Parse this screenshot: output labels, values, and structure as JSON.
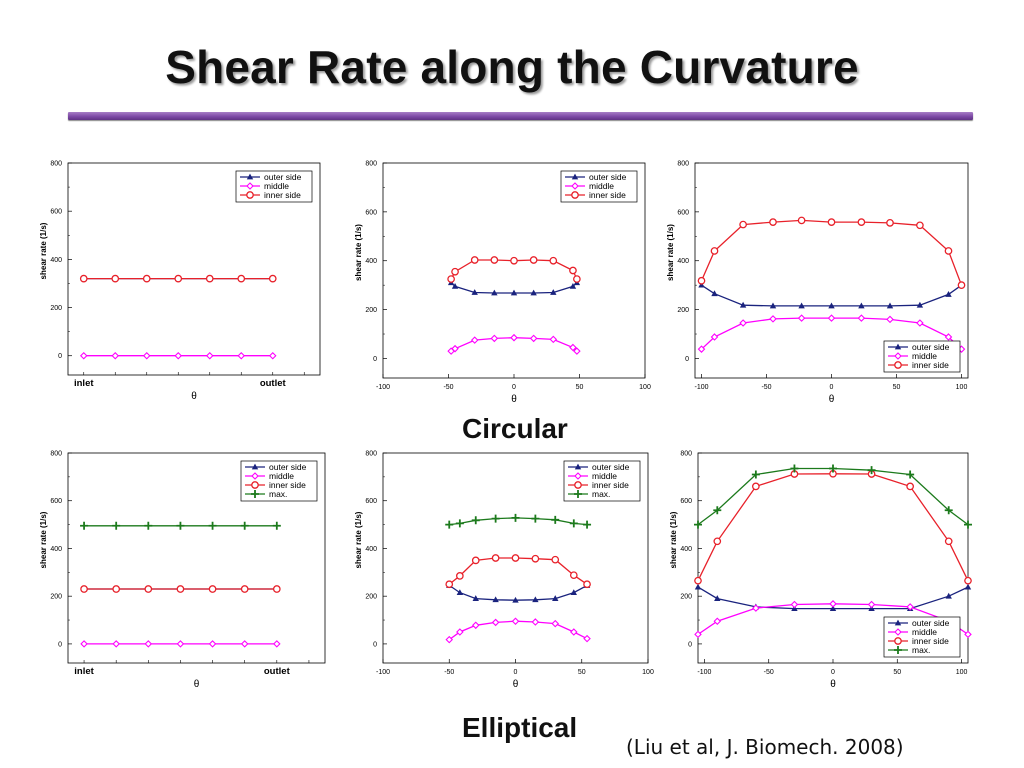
{
  "title": "Shear Rate along the Curvature",
  "section_labels": {
    "circular": "Circular",
    "elliptical": "Elliptical"
  },
  "citation": "(Liu et al, J. Biomech. 2008)",
  "colors": {
    "outer side": "#1a237e",
    "middle": "#ff00ff",
    "inner side": "#e8212a",
    "max.": "#1c7a1c"
  },
  "chart_data": [
    {
      "id": "circular-straight",
      "type": "line",
      "xlabel": "θ",
      "ylabel": "shear rate (1/s)",
      "ylim": [
        -80,
        800
      ],
      "yticks": [
        0,
        200,
        400,
        600,
        800
      ],
      "xlim": [
        -0.5,
        7.5
      ],
      "x_tick_labels": [
        "inlet",
        "outlet"
      ],
      "legend": "top-right",
      "series": [
        {
          "name": "outer side",
          "marker": "triangle",
          "x": [
            0,
            1,
            2,
            3,
            4,
            5,
            6
          ],
          "y": [
            320,
            320,
            320,
            320,
            320,
            320,
            320
          ]
        },
        {
          "name": "middle",
          "marker": "diamond",
          "x": [
            0,
            1,
            2,
            3,
            4,
            5,
            6
          ],
          "y": [
            0,
            0,
            0,
            0,
            0,
            0,
            0
          ]
        },
        {
          "name": "inner side",
          "marker": "circle",
          "x": [
            0,
            1,
            2,
            3,
            4,
            5,
            6
          ],
          "y": [
            320,
            320,
            320,
            320,
            320,
            320,
            320
          ]
        }
      ]
    },
    {
      "id": "circular-mild",
      "type": "line",
      "xlabel": "θ",
      "ylabel": "shear rate (1/s)",
      "xlim": [
        -100,
        100
      ],
      "xticks": [
        -100,
        -50,
        0,
        50,
        100
      ],
      "ylim": [
        -80,
        800
      ],
      "yticks": [
        0,
        200,
        400,
        600,
        800
      ],
      "legend": "top-right",
      "series": [
        {
          "name": "outer side",
          "marker": "triangle",
          "x": [
            -48,
            -45,
            -30,
            -15,
            0,
            15,
            30,
            45,
            48
          ],
          "y": [
            310,
            295,
            270,
            268,
            268,
            268,
            270,
            295,
            310
          ]
        },
        {
          "name": "middle",
          "marker": "diamond",
          "x": [
            -48,
            -45,
            -30,
            -15,
            0,
            15,
            30,
            45,
            48
          ],
          "y": [
            30,
            40,
            75,
            82,
            85,
            82,
            78,
            45,
            30
          ]
        },
        {
          "name": "inner side",
          "marker": "circle",
          "x": [
            -48,
            -45,
            -30,
            -15,
            0,
            15,
            30,
            45,
            48
          ],
          "y": [
            325,
            355,
            403,
            403,
            400,
            403,
            400,
            360,
            325
          ]
        }
      ]
    },
    {
      "id": "circular-strong",
      "type": "line",
      "xlabel": "θ",
      "ylabel": "shear rate (1/s)",
      "xlim": [
        -105,
        105
      ],
      "xticks": [
        -100,
        -50,
        0,
        50,
        100
      ],
      "ylim": [
        -80,
        800
      ],
      "yticks": [
        0,
        200,
        400,
        600,
        800
      ],
      "legend": "bottom-right",
      "series": [
        {
          "name": "outer side",
          "marker": "triangle",
          "x": [
            -100,
            -90,
            -68,
            -45,
            -23,
            0,
            23,
            45,
            68,
            90,
            100
          ],
          "y": [
            300,
            265,
            218,
            215,
            215,
            215,
            215,
            215,
            218,
            262,
            300
          ]
        },
        {
          "name": "middle",
          "marker": "diamond",
          "x": [
            -100,
            -90,
            -68,
            -45,
            -23,
            0,
            23,
            45,
            68,
            90,
            100
          ],
          "y": [
            38,
            88,
            145,
            162,
            165,
            165,
            165,
            160,
            145,
            88,
            38
          ]
        },
        {
          "name": "inner side",
          "marker": "circle",
          "x": [
            -100,
            -90,
            -68,
            -45,
            -23,
            0,
            23,
            45,
            68,
            90,
            100
          ],
          "y": [
            318,
            440,
            548,
            558,
            565,
            558,
            558,
            555,
            545,
            440,
            300
          ]
        }
      ]
    },
    {
      "id": "elliptical-straight",
      "type": "line",
      "xlabel": "θ",
      "ylabel": "shear rate (1/s)",
      "ylim": [
        -80,
        800
      ],
      "yticks": [
        0,
        200,
        400,
        600,
        800
      ],
      "xlim": [
        -0.5,
        7.5
      ],
      "x_tick_labels": [
        "inlet",
        "outlet"
      ],
      "legend": "top-right",
      "series": [
        {
          "name": "outer side",
          "marker": "triangle",
          "x": [
            0,
            1,
            2,
            3,
            4,
            5,
            6
          ],
          "y": [
            230,
            230,
            230,
            230,
            230,
            230,
            230
          ]
        },
        {
          "name": "middle",
          "marker": "diamond",
          "x": [
            0,
            1,
            2,
            3,
            4,
            5,
            6
          ],
          "y": [
            0,
            0,
            0,
            0,
            0,
            0,
            0
          ]
        },
        {
          "name": "inner side",
          "marker": "circle",
          "x": [
            0,
            1,
            2,
            3,
            4,
            5,
            6
          ],
          "y": [
            230,
            230,
            230,
            230,
            230,
            230,
            230
          ]
        },
        {
          "name": "max.",
          "marker": "plus",
          "x": [
            0,
            1,
            2,
            3,
            4,
            5,
            6
          ],
          "y": [
            495,
            495,
            495,
            495,
            495,
            495,
            495
          ]
        }
      ]
    },
    {
      "id": "elliptical-mild",
      "type": "line",
      "xlabel": "θ",
      "ylabel": "shear rate (1/s)",
      "xlim": [
        -100,
        100
      ],
      "xticks": [
        -100,
        -50,
        0,
        50,
        100
      ],
      "ylim": [
        -80,
        800
      ],
      "yticks": [
        0,
        200,
        400,
        600,
        800
      ],
      "legend": "top-right",
      "series": [
        {
          "name": "outer side",
          "marker": "triangle",
          "x": [
            -50,
            -42,
            -30,
            -15,
            0,
            15,
            30,
            44,
            54
          ],
          "y": [
            245,
            215,
            190,
            185,
            183,
            185,
            190,
            215,
            245
          ]
        },
        {
          "name": "middle",
          "marker": "diamond",
          "x": [
            -50,
            -42,
            -30,
            -15,
            0,
            15,
            30,
            44,
            54
          ],
          "y": [
            18,
            50,
            78,
            90,
            95,
            92,
            85,
            50,
            22
          ]
        },
        {
          "name": "inner side",
          "marker": "circle",
          "x": [
            -50,
            -42,
            -30,
            -15,
            0,
            15,
            30,
            44,
            54
          ],
          "y": [
            250,
            285,
            350,
            360,
            360,
            357,
            353,
            288,
            250
          ]
        },
        {
          "name": "max.",
          "marker": "plus",
          "x": [
            -50,
            -42,
            -30,
            -15,
            0,
            15,
            30,
            44,
            54
          ],
          "y": [
            500,
            505,
            518,
            525,
            528,
            525,
            520,
            505,
            500
          ]
        }
      ]
    },
    {
      "id": "elliptical-strong",
      "type": "line",
      "xlabel": "θ",
      "ylabel": "shear rate (1/s)",
      "xlim": [
        -105,
        105
      ],
      "xticks": [
        -100,
        -50,
        0,
        50,
        100
      ],
      "ylim": [
        -80,
        800
      ],
      "yticks": [
        0,
        200,
        400,
        600,
        800
      ],
      "legend": "bottom-right",
      "series": [
        {
          "name": "outer side",
          "marker": "triangle",
          "x": [
            -105,
            -90,
            -60,
            -30,
            0,
            30,
            60,
            90,
            105
          ],
          "y": [
            238,
            190,
            155,
            148,
            148,
            148,
            148,
            200,
            238
          ]
        },
        {
          "name": "middle",
          "marker": "diamond",
          "x": [
            -105,
            -90,
            -60,
            -30,
            0,
            30,
            60,
            90,
            105
          ],
          "y": [
            40,
            95,
            150,
            165,
            168,
            165,
            155,
            95,
            40
          ]
        },
        {
          "name": "inner side",
          "marker": "circle",
          "x": [
            -105,
            -90,
            -60,
            -30,
            0,
            30,
            60,
            90,
            105
          ],
          "y": [
            265,
            430,
            660,
            712,
            713,
            712,
            660,
            430,
            265
          ]
        },
        {
          "name": "max.",
          "marker": "plus",
          "x": [
            -105,
            -90,
            -60,
            -30,
            0,
            30,
            60,
            90,
            105
          ],
          "y": [
            500,
            560,
            710,
            735,
            735,
            728,
            710,
            560,
            500
          ]
        }
      ]
    }
  ]
}
